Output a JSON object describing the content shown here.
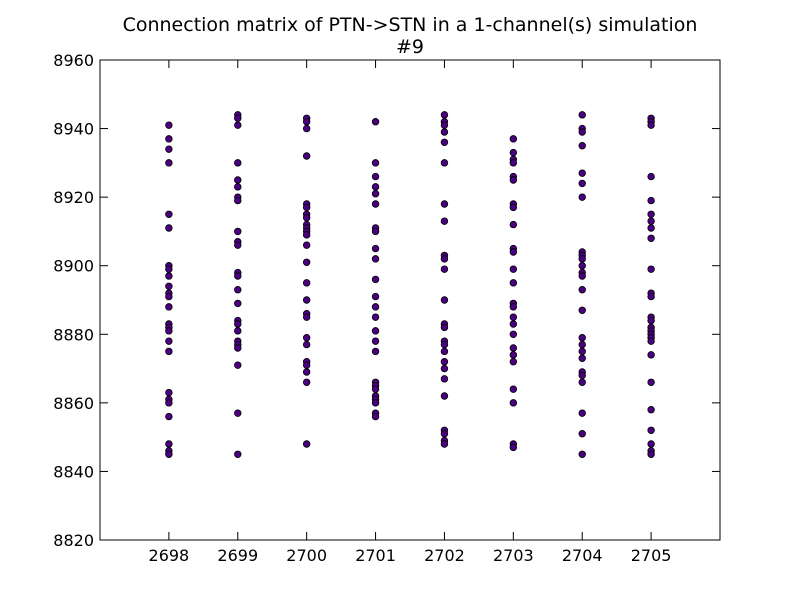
{
  "chart_data": {
    "type": "scatter",
    "title": "Connection matrix of PTN->STN in a 1-channel(s) simulation",
    "subtitle": "#9",
    "xlabel": "",
    "ylabel": "",
    "xlim": [
      2697,
      2706
    ],
    "ylim": [
      8820,
      8960
    ],
    "xticks": [
      2698,
      2699,
      2700,
      2701,
      2702,
      2703,
      2704,
      2705
    ],
    "yticks": [
      8820,
      8840,
      8860,
      8880,
      8900,
      8920,
      8940,
      8960
    ],
    "grid": false,
    "marker_color": "#4b0082",
    "points": [
      {
        "x": 2698,
        "ys": [
          8941,
          8937,
          8934,
          8930,
          8915,
          8911,
          8900,
          8899,
          8897,
          8894,
          8892,
          8891,
          8888,
          8883,
          8882,
          8881,
          8878,
          8875,
          8863,
          8861,
          8860,
          8856,
          8848,
          8846,
          8845
        ]
      },
      {
        "x": 2699,
        "ys": [
          8944,
          8943,
          8941,
          8930,
          8925,
          8923,
          8920,
          8919,
          8910,
          8907,
          8906,
          8898,
          8897,
          8893,
          8889,
          8884,
          8883,
          8881,
          8878,
          8877,
          8876,
          8871,
          8857,
          8845
        ]
      },
      {
        "x": 2700,
        "ys": [
          8943,
          8942,
          8940,
          8932,
          8918,
          8917,
          8915,
          8914,
          8912,
          8911,
          8910,
          8909,
          8906,
          8901,
          8895,
          8890,
          8886,
          8885,
          8879,
          8877,
          8872,
          8871,
          8869,
          8866,
          8848
        ]
      },
      {
        "x": 2701,
        "ys": [
          8942,
          8930,
          8926,
          8923,
          8921,
          8918,
          8911,
          8910,
          8905,
          8902,
          8896,
          8891,
          8888,
          8885,
          8881,
          8878,
          8875,
          8866,
          8865,
          8864,
          8862,
          8861,
          8860,
          8857,
          8856
        ]
      },
      {
        "x": 2702,
        "ys": [
          8944,
          8942,
          8941,
          8939,
          8936,
          8930,
          8918,
          8913,
          8903,
          8902,
          8899,
          8890,
          8883,
          8882,
          8878,
          8877,
          8875,
          8872,
          8870,
          8867,
          8862,
          8852,
          8851,
          8849,
          8848
        ]
      },
      {
        "x": 2703,
        "ys": [
          8937,
          8933,
          8931,
          8930,
          8926,
          8925,
          8918,
          8917,
          8912,
          8905,
          8904,
          8899,
          8895,
          8889,
          8888,
          8885,
          8883,
          8880,
          8876,
          8874,
          8872,
          8864,
          8860,
          8848,
          8847
        ]
      },
      {
        "x": 2704,
        "ys": [
          8944,
          8940,
          8939,
          8935,
          8927,
          8924,
          8920,
          8904,
          8903,
          8902,
          8900,
          8898,
          8897,
          8893,
          8887,
          8879,
          8877,
          8875,
          8873,
          8869,
          8868,
          8866,
          8857,
          8851,
          8845
        ]
      },
      {
        "x": 2705,
        "ys": [
          8943,
          8942,
          8941,
          8926,
          8919,
          8915,
          8913,
          8911,
          8908,
          8899,
          8892,
          8891,
          8885,
          8884,
          8882,
          8881,
          8880,
          8879,
          8878,
          8874,
          8866,
          8858,
          8852,
          8848,
          8846,
          8845
        ]
      }
    ]
  }
}
